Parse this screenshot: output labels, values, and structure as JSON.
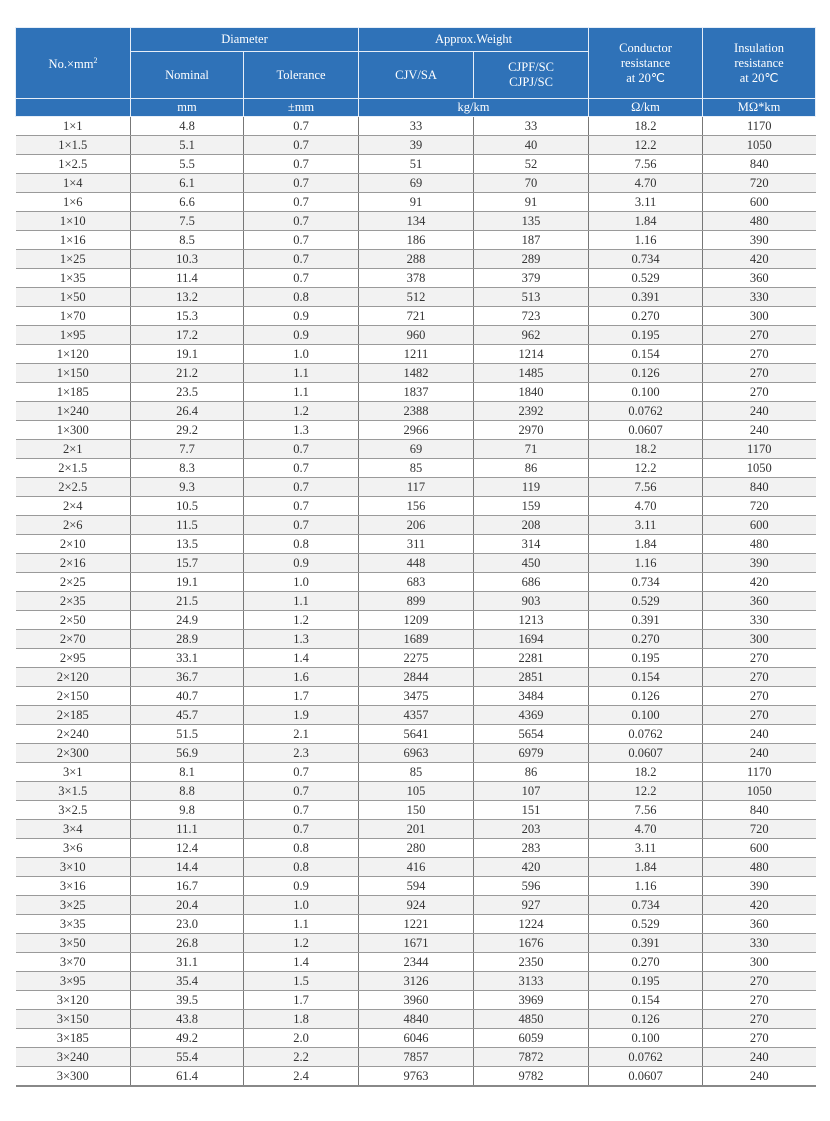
{
  "header": {
    "no": "No.×mm",
    "no_sup": "2",
    "diameter": "Diameter",
    "nominal": "Nominal",
    "tolerance": "Tolerance",
    "weight": "Approx.Weight",
    "cjv": "CJV/SA",
    "cjpf": "CJPF/SC",
    "cjpj": "CJPJ/SC",
    "conductor_1": "Conductor",
    "conductor_2": "resistance",
    "conductor_3": "at 20℃",
    "insulation_1": "Insulation",
    "insulation_2": "resistance",
    "insulation_3": "at 20℃",
    "unit_mm": "mm",
    "unit_tol": "±mm",
    "unit_kg": "kg/km",
    "unit_ohm": "Ω/km",
    "unit_mohm": "MΩ*km"
  },
  "header_color": "#2f72b8",
  "rows": [
    [
      "1×1",
      "4.8",
      "0.7",
      "33",
      "33",
      "18.2",
      "1170"
    ],
    [
      "1×1.5",
      "5.1",
      "0.7",
      "39",
      "40",
      "12.2",
      "1050"
    ],
    [
      "1×2.5",
      "5.5",
      "0.7",
      "51",
      "52",
      "7.56",
      "840"
    ],
    [
      "1×4",
      "6.1",
      "0.7",
      "69",
      "70",
      "4.70",
      "720"
    ],
    [
      "1×6",
      "6.6",
      "0.7",
      "91",
      "91",
      "3.11",
      "600"
    ],
    [
      "1×10",
      "7.5",
      "0.7",
      "134",
      "135",
      "1.84",
      "480"
    ],
    [
      "1×16",
      "8.5",
      "0.7",
      "186",
      "187",
      "1.16",
      "390"
    ],
    [
      "1×25",
      "10.3",
      "0.7",
      "288",
      "289",
      "0.734",
      "420"
    ],
    [
      "1×35",
      "11.4",
      "0.7",
      "378",
      "379",
      "0.529",
      "360"
    ],
    [
      "1×50",
      "13.2",
      "0.8",
      "512",
      "513",
      "0.391",
      "330"
    ],
    [
      "1×70",
      "15.3",
      "0.9",
      "721",
      "723",
      "0.270",
      "300"
    ],
    [
      "1×95",
      "17.2",
      "0.9",
      "960",
      "962",
      "0.195",
      "270"
    ],
    [
      "1×120",
      "19.1",
      "1.0",
      "1211",
      "1214",
      "0.154",
      "270"
    ],
    [
      "1×150",
      "21.2",
      "1.1",
      "1482",
      "1485",
      "0.126",
      "270"
    ],
    [
      "1×185",
      "23.5",
      "1.1",
      "1837",
      "1840",
      "0.100",
      "270"
    ],
    [
      "1×240",
      "26.4",
      "1.2",
      "2388",
      "2392",
      "0.0762",
      "240"
    ],
    [
      "1×300",
      "29.2",
      "1.3",
      "2966",
      "2970",
      "0.0607",
      "240"
    ],
    [
      "2×1",
      "7.7",
      "0.7",
      "69",
      "71",
      "18.2",
      "1170"
    ],
    [
      "2×1.5",
      "8.3",
      "0.7",
      "85",
      "86",
      "12.2",
      "1050"
    ],
    [
      "2×2.5",
      "9.3",
      "0.7",
      "117",
      "119",
      "7.56",
      "840"
    ],
    [
      "2×4",
      "10.5",
      "0.7",
      "156",
      "159",
      "4.70",
      "720"
    ],
    [
      "2×6",
      "11.5",
      "0.7",
      "206",
      "208",
      "3.11",
      "600"
    ],
    [
      "2×10",
      "13.5",
      "0.8",
      "311",
      "314",
      "1.84",
      "480"
    ],
    [
      "2×16",
      "15.7",
      "0.9",
      "448",
      "450",
      "1.16",
      "390"
    ],
    [
      "2×25",
      "19.1",
      "1.0",
      "683",
      "686",
      "0.734",
      "420"
    ],
    [
      "2×35",
      "21.5",
      "1.1",
      "899",
      "903",
      "0.529",
      "360"
    ],
    [
      "2×50",
      "24.9",
      "1.2",
      "1209",
      "1213",
      "0.391",
      "330"
    ],
    [
      "2×70",
      "28.9",
      "1.3",
      "1689",
      "1694",
      "0.270",
      "300"
    ],
    [
      "2×95",
      "33.1",
      "1.4",
      "2275",
      "2281",
      "0.195",
      "270"
    ],
    [
      "2×120",
      "36.7",
      "1.6",
      "2844",
      "2851",
      "0.154",
      "270"
    ],
    [
      "2×150",
      "40.7",
      "1.7",
      "3475",
      "3484",
      "0.126",
      "270"
    ],
    [
      "2×185",
      "45.7",
      "1.9",
      "4357",
      "4369",
      "0.100",
      "270"
    ],
    [
      "2×240",
      "51.5",
      "2.1",
      "5641",
      "5654",
      "0.0762",
      "240"
    ],
    [
      "2×300",
      "56.9",
      "2.3",
      "6963",
      "6979",
      "0.0607",
      "240"
    ],
    [
      "3×1",
      "8.1",
      "0.7",
      "85",
      "86",
      "18.2",
      "1170"
    ],
    [
      "3×1.5",
      "8.8",
      "0.7",
      "105",
      "107",
      "12.2",
      "1050"
    ],
    [
      "3×2.5",
      "9.8",
      "0.7",
      "150",
      "151",
      "7.56",
      "840"
    ],
    [
      "3×4",
      "11.1",
      "0.7",
      "201",
      "203",
      "4.70",
      "720"
    ],
    [
      "3×6",
      "12.4",
      "0.8",
      "280",
      "283",
      "3.11",
      "600"
    ],
    [
      "3×10",
      "14.4",
      "0.8",
      "416",
      "420",
      "1.84",
      "480"
    ],
    [
      "3×16",
      "16.7",
      "0.9",
      "594",
      "596",
      "1.16",
      "390"
    ],
    [
      "3×25",
      "20.4",
      "1.0",
      "924",
      "927",
      "0.734",
      "420"
    ],
    [
      "3×35",
      "23.0",
      "1.1",
      "1221",
      "1224",
      "0.529",
      "360"
    ],
    [
      "3×50",
      "26.8",
      "1.2",
      "1671",
      "1676",
      "0.391",
      "330"
    ],
    [
      "3×70",
      "31.1",
      "1.4",
      "2344",
      "2350",
      "0.270",
      "300"
    ],
    [
      "3×95",
      "35.4",
      "1.5",
      "3126",
      "3133",
      "0.195",
      "270"
    ],
    [
      "3×120",
      "39.5",
      "1.7",
      "3960",
      "3969",
      "0.154",
      "270"
    ],
    [
      "3×150",
      "43.8",
      "1.8",
      "4840",
      "4850",
      "0.126",
      "270"
    ],
    [
      "3×185",
      "49.2",
      "2.0",
      "6046",
      "6059",
      "0.100",
      "270"
    ],
    [
      "3×240",
      "55.4",
      "2.2",
      "7857",
      "7872",
      "0.0762",
      "240"
    ],
    [
      "3×300",
      "61.4",
      "2.4",
      "9763",
      "9782",
      "0.0607",
      "240"
    ]
  ]
}
